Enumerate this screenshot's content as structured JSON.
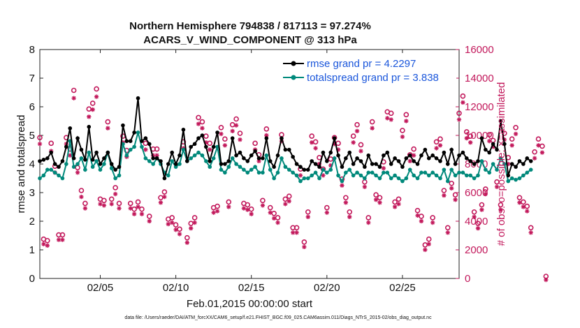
{
  "chart_data": {
    "type": "line",
    "title_line1": "Northern Hemisphere 794838 / 817113 = 97.274%",
    "title_line2": "ACARS_V_WIND_COMPONENT @ 313 hPa",
    "xlabel": "Feb.01,2015 00:00:00 start",
    "ylabel_left": "rmse and totalspread",
    "ylabel_right": "# of obs: o=possible; ×=assimilated",
    "footer": "data file: /Users/raeder/DAI/ATM_forcXX/CAM6_setup/f.e21.FHIST_BGC.f09_025.CAM6assim.011/Diags_NTrS_2015-02/obs_diag_output.nc",
    "x_tick_labels": [
      "02/05",
      "02/10",
      "02/15",
      "02/20",
      "02/25"
    ],
    "x_tick_days": [
      5,
      10,
      15,
      20,
      25
    ],
    "xlim_days": [
      1,
      28.75
    ],
    "ylim_left": [
      0,
      8
    ],
    "y_ticks_left": [
      "0",
      "1",
      "2",
      "3",
      "4",
      "5",
      "6",
      "7",
      "8"
    ],
    "ylim_right": [
      0,
      16000
    ],
    "y_ticks_right": [
      "0",
      "2000",
      "4000",
      "6000",
      "8000",
      "10000",
      "12000",
      "14000",
      "16000"
    ],
    "colors": {
      "rmse": "#000000",
      "spread": "#00897b",
      "obs": "#c2185b",
      "legend_text": "#1a56db"
    },
    "legend": [
      {
        "label": "rmse grand pr = 4.2297",
        "series": "rmse"
      },
      {
        "label": "totalspread grand pr = 3.838",
        "series": "spread"
      }
    ],
    "series": [
      {
        "name": "rmse",
        "start_day": 1.0,
        "step_day": 0.25,
        "values": [
          4.1,
          4.15,
          4.2,
          4.4,
          4.0,
          3.9,
          4.1,
          4.6,
          5.25,
          4.2,
          4.9,
          4.5,
          4.15,
          5.3,
          4.15,
          4.4,
          4.0,
          4.2,
          4.4,
          4.0,
          3.8,
          3.9,
          5.35,
          4.8,
          4.8,
          5.1,
          6.3,
          4.8,
          4.9,
          4.7,
          4.2,
          4.2,
          4.1,
          3.5,
          4.0,
          4.4,
          4.0,
          4.3,
          5.2,
          4.1,
          4.6,
          4.7,
          4.9,
          5.0,
          4.6,
          4.1,
          4.6,
          5.1,
          4.0,
          4.0,
          4.1,
          4.9,
          4.3,
          4.4,
          4.2,
          4.1,
          4.3,
          4.45,
          4.2,
          4.2,
          4.9,
          4.1,
          3.9,
          4.3,
          4.9,
          4.5,
          4.5,
          4.25,
          4.0,
          3.9,
          3.8,
          3.8,
          4.1,
          4.0,
          3.9,
          4.4,
          4.1,
          4.4,
          4.9,
          4.3,
          3.9,
          4.2,
          4.4,
          4.0,
          4.2,
          4.1,
          3.9,
          4.3,
          4.0,
          4.0,
          3.9,
          4.3,
          4.4,
          4.0,
          4.2,
          4.1,
          3.9,
          4.2,
          4.3,
          4.1,
          4.0,
          4.3,
          4.5,
          4.2,
          4.3,
          4.2,
          4.1,
          4.4,
          4.0,
          4.5,
          4.0,
          4.3,
          4.4,
          4.2,
          4.1,
          4.0,
          4.1,
          4.9,
          4.5,
          4.4,
          4.7,
          4.5,
          5.5,
          4.7,
          3.6,
          4.0,
          3.9,
          4.1,
          4.0,
          4.2,
          4.1
        ]
      },
      {
        "name": "totalspread",
        "start_day": 1.0,
        "step_day": 0.25,
        "values": [
          3.5,
          3.6,
          3.8,
          3.8,
          3.7,
          3.6,
          3.5,
          4.0,
          4.8,
          3.9,
          4.0,
          4.2,
          3.8,
          4.4,
          3.9,
          4.1,
          3.8,
          4.0,
          4.4,
          3.85,
          3.5,
          3.6,
          4.7,
          4.3,
          4.5,
          4.6,
          5.1,
          4.6,
          4.2,
          4.1,
          4.0,
          4.2,
          4.0,
          3.7,
          3.6,
          4.1,
          3.9,
          4.0,
          4.5,
          4.1,
          4.2,
          4.3,
          4.4,
          4.3,
          4.1,
          3.9,
          4.2,
          4.6,
          3.8,
          3.7,
          3.9,
          4.2,
          4.0,
          3.9,
          3.8,
          3.7,
          3.8,
          3.9,
          3.7,
          3.7,
          4.3,
          3.8,
          3.5,
          3.7,
          4.2,
          3.9,
          3.8,
          3.7,
          3.6,
          3.4,
          3.5,
          3.5,
          3.6,
          3.7,
          3.5,
          3.8,
          3.7,
          3.8,
          4.2,
          3.6,
          3.4,
          3.7,
          3.8,
          3.6,
          3.7,
          3.6,
          3.5,
          3.7,
          3.7,
          3.6,
          3.5,
          3.7,
          3.7,
          3.5,
          3.6,
          3.5,
          3.4,
          3.5,
          3.8,
          3.6,
          3.5,
          3.7,
          3.7,
          3.6,
          3.7,
          3.6,
          3.5,
          3.8,
          3.4,
          3.8,
          3.6,
          3.7,
          3.7,
          3.6,
          3.6,
          3.5,
          3.6,
          4.1,
          3.8,
          3.7,
          4.0,
          3.8,
          4.2,
          4.0,
          3.4,
          3.5,
          3.45,
          3.5,
          3.6,
          3.7,
          3.8
        ]
      },
      {
        "name": "obs_possible",
        "axis": "right",
        "start_day": 1.0,
        "step_day": 0.25,
        "values": [
          9700,
          2600,
          2500,
          9300,
          7700,
          2900,
          2900,
          9700,
          8900,
          13000,
          7600,
          6000,
          5100,
          11700,
          12100,
          13100,
          5400,
          5300,
          10800,
          5400,
          6200,
          5100,
          9800,
          8800,
          5100,
          4700,
          5200,
          4700,
          9300,
          4200,
          8900,
          8900,
          5500,
          5900,
          4000,
          4100,
          3600,
          3300,
          9400,
          2700,
          3700,
          4100,
          11100,
          10800,
          9800,
          9300,
          4800,
          4900,
          10400,
          9600,
          5200,
          10600,
          11000,
          10000,
          5100,
          5000,
          4700,
          9300,
          8500,
          5300,
          10300,
          4800,
          4400,
          4100,
          9900,
          5400,
          5600,
          3400,
          3400,
          7500,
          2400,
          4500,
          9800,
          9400,
          8300,
          7500,
          4800,
          8200,
          9700,
          9300,
          6800,
          5500,
          4500,
          9800,
          10600,
          9200,
          6600,
          4100,
          10800,
          5700,
          5500,
          8000,
          11500,
          11400,
          5200,
          5400,
          10200,
          11300,
          8500,
          8900,
          4600,
          4200,
          2200,
          2600,
          4100,
          9400,
          9600,
          6000,
          3400,
          6500,
          5700,
          11400,
          12600,
          10100,
          9800,
          4500,
          3700,
          5000,
          6100,
          9900,
          9500,
          6600,
          5000,
          10000,
          8300,
          9600,
          10400,
          5500,
          5200,
          4900,
          3400,
          8700,
          9600,
          9100,
          0
        ]
      },
      {
        "name": "obs_assimilated",
        "axis": "right",
        "start_day": 1.0,
        "step_day": 0.25,
        "values": [
          9500,
          2500,
          2400,
          9000,
          7500,
          2800,
          2800,
          9500,
          8700,
          12700,
          7500,
          5800,
          5000,
          11400,
          11900,
          12800,
          5300,
          5200,
          10600,
          5300,
          6000,
          5000,
          9600,
          8600,
          5000,
          4600,
          5100,
          4600,
          9100,
          4100,
          8700,
          8700,
          5400,
          5800,
          3900,
          4000,
          3500,
          3200,
          9200,
          2600,
          3600,
          4000,
          10900,
          10600,
          9600,
          9100,
          4700,
          4800,
          10200,
          9400,
          5100,
          10400,
          10800,
          9800,
          5000,
          4900,
          4600,
          9100,
          8300,
          5200,
          10100,
          4700,
          4300,
          4000,
          9700,
          5300,
          5500,
          3300,
          3300,
          7300,
          2300,
          4400,
          9600,
          9200,
          8100,
          7300,
          4700,
          8000,
          9500,
          9100,
          6600,
          5400,
          4400,
          9600,
          10400,
          9000,
          6500,
          4000,
          10600,
          5600,
          5400,
          7800,
          11300,
          11200,
          5100,
          5300,
          10000,
          11100,
          8300,
          8700,
          4500,
          4100,
          2100,
          2500,
          4000,
          9200,
          9400,
          5900,
          3300,
          6400,
          5600,
          11200,
          12400,
          9900,
          9600,
          4400,
          3600,
          4900,
          6000,
          9700,
          9300,
          6500,
          4900,
          9800,
          8100,
          9400,
          10200,
          5400,
          5100,
          4800,
          3300,
          8500,
          9400,
          8900,
          0
        ]
      }
    ]
  }
}
